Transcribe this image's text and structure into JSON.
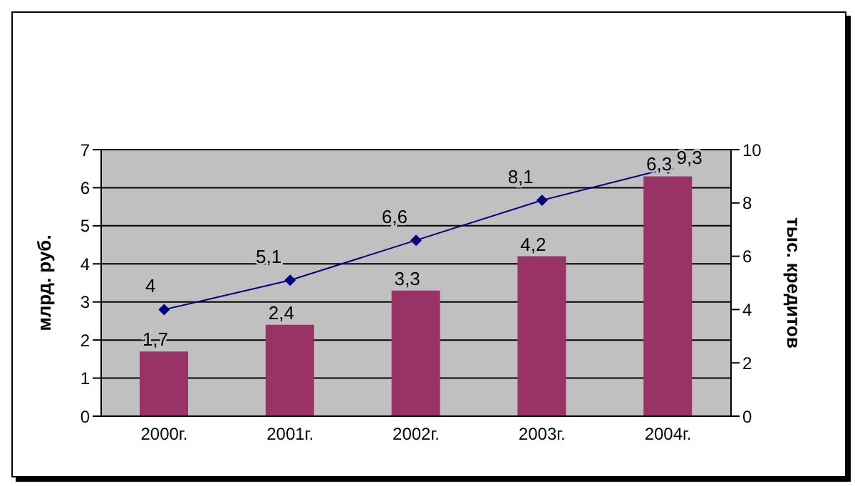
{
  "chart_data": {
    "type": "bar",
    "ylabel": "млрд. руб.",
    "y2label": "тыс. кредитов",
    "categories": [
      "2000г.",
      "2001г.",
      "2002г.",
      "2003г.",
      "2004г."
    ],
    "series": [
      {
        "color": "#993366",
        "values": [
          1.7,
          2.4,
          3.3,
          4.2,
          6.3
        ],
        "value_labels": [
          "1,7",
          "2,4",
          "3,3",
          "4,2",
          "6,3"
        ]
      },
      {
        "type": "line",
        "axis": "y2",
        "color": "#000080",
        "values": [
          4,
          5.1,
          6.6,
          8.1,
          9.3
        ],
        "value_labels": [
          "4",
          "5,1",
          "6,6",
          "8,1",
          "9,3"
        ]
      }
    ],
    "ylim": [
      0,
      7
    ],
    "yticks": [
      0,
      1,
      2,
      3,
      4,
      5,
      6,
      7
    ],
    "y2lim": [
      0,
      10
    ],
    "y2ticks": [
      0,
      2,
      4,
      6,
      8,
      10
    ],
    "grid": "y",
    "marker": "diamond"
  }
}
